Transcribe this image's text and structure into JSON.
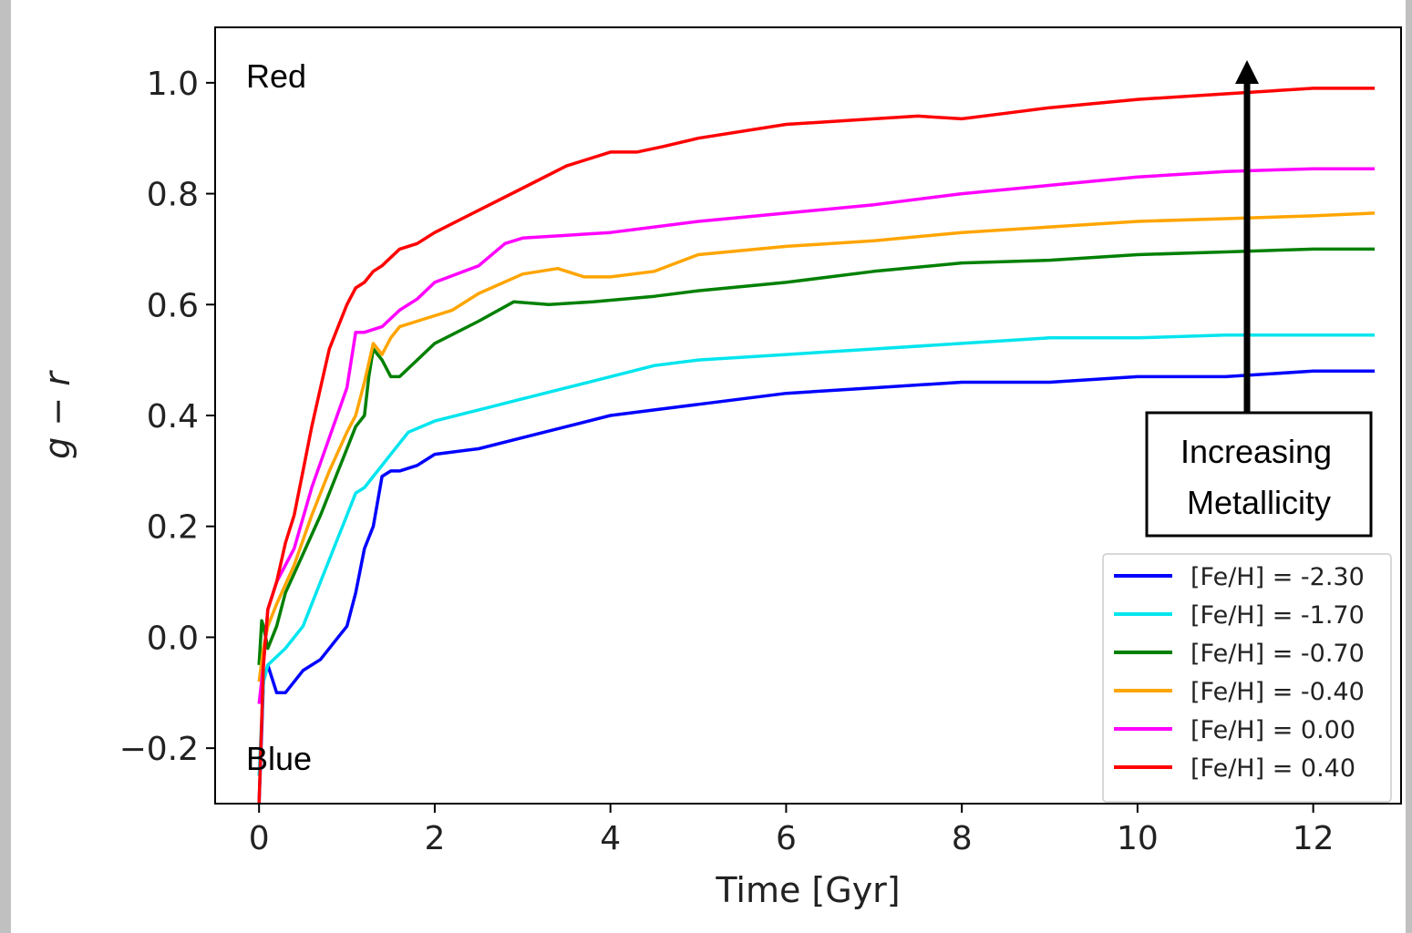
{
  "chart_data": {
    "type": "line",
    "title": "",
    "xlabel": "Time [Gyr]",
    "ylabel": "g − r",
    "xlim": [
      -0.5,
      13.0
    ],
    "ylim": [
      -0.3,
      1.1
    ],
    "x_ticks": [
      0,
      2,
      4,
      6,
      8,
      10,
      12
    ],
    "y_ticks": [
      -0.2,
      0.0,
      0.2,
      0.4,
      0.6,
      0.8,
      1.0
    ],
    "x_tick_labels": [
      "0",
      "2",
      "4",
      "6",
      "8",
      "10",
      "12"
    ],
    "y_tick_labels": [
      "−0.2",
      "0.0",
      "0.2",
      "0.4",
      "0.6",
      "0.8",
      "1.0"
    ],
    "grid": false,
    "legend_position": "lower-right",
    "annotations": {
      "top": "Red",
      "bottom": "Blue",
      "arrow_line1": "Increasing",
      "arrow_line2": "Metallicity"
    },
    "series": [
      {
        "name": "[Fe/H] = -2.30",
        "color": "#0000ff",
        "x": [
          0.0,
          0.05,
          0.1,
          0.2,
          0.3,
          0.5,
          0.7,
          0.9,
          1.0,
          1.1,
          1.2,
          1.3,
          1.4,
          1.5,
          1.6,
          1.8,
          2.0,
          2.5,
          3.0,
          3.5,
          4.0,
          4.5,
          5.0,
          6.0,
          7.0,
          8.0,
          9.0,
          10.0,
          11.0,
          12.0,
          12.7
        ],
        "y": [
          -0.3,
          -0.08,
          -0.05,
          -0.1,
          -0.1,
          -0.06,
          -0.04,
          0.0,
          0.02,
          0.08,
          0.16,
          0.2,
          0.29,
          0.3,
          0.3,
          0.31,
          0.33,
          0.34,
          0.36,
          0.38,
          0.4,
          0.41,
          0.42,
          0.44,
          0.45,
          0.46,
          0.46,
          0.47,
          0.47,
          0.48,
          0.48
        ]
      },
      {
        "name": "[Fe/H] = -1.70",
        "color": "#00e5ee",
        "x": [
          0.0,
          0.05,
          0.1,
          0.3,
          0.5,
          0.7,
          0.9,
          1.0,
          1.1,
          1.2,
          1.3,
          1.5,
          1.7,
          2.0,
          2.5,
          3.0,
          3.5,
          4.0,
          4.5,
          5.0,
          6.0,
          7.0,
          8.0,
          9.0,
          10.0,
          11.0,
          12.0,
          12.7
        ],
        "y": [
          -0.25,
          -0.08,
          -0.05,
          -0.02,
          0.02,
          0.1,
          0.18,
          0.22,
          0.26,
          0.27,
          0.29,
          0.33,
          0.37,
          0.39,
          0.41,
          0.43,
          0.45,
          0.47,
          0.49,
          0.5,
          0.51,
          0.52,
          0.53,
          0.54,
          0.54,
          0.545,
          0.545,
          0.545
        ]
      },
      {
        "name": "[Fe/H] = -0.70",
        "color": "#008000",
        "x": [
          0.0,
          0.03,
          0.05,
          0.1,
          0.2,
          0.3,
          0.5,
          0.7,
          0.9,
          1.0,
          1.1,
          1.2,
          1.25,
          1.3,
          1.4,
          1.5,
          1.6,
          1.8,
          2.0,
          2.5,
          2.9,
          3.3,
          3.8,
          4.5,
          5.0,
          6.0,
          7.0,
          8.0,
          9.0,
          10.0,
          11.0,
          12.0,
          12.7
        ],
        "y": [
          -0.05,
          0.03,
          0.02,
          -0.02,
          0.02,
          0.08,
          0.15,
          0.22,
          0.3,
          0.34,
          0.38,
          0.4,
          0.47,
          0.52,
          0.5,
          0.47,
          0.47,
          0.5,
          0.53,
          0.57,
          0.605,
          0.6,
          0.605,
          0.615,
          0.625,
          0.64,
          0.66,
          0.675,
          0.68,
          0.69,
          0.695,
          0.7,
          0.7
        ]
      },
      {
        "name": "[Fe/H] = -0.40",
        "color": "#ffa500",
        "x": [
          0.0,
          0.05,
          0.1,
          0.2,
          0.4,
          0.6,
          0.8,
          1.0,
          1.1,
          1.2,
          1.3,
          1.4,
          1.5,
          1.6,
          1.8,
          2.0,
          2.2,
          2.5,
          3.0,
          3.4,
          3.7,
          4.0,
          4.5,
          5.0,
          6.0,
          7.0,
          8.0,
          9.0,
          10.0,
          11.0,
          12.0,
          12.7
        ],
        "y": [
          -0.08,
          -0.02,
          0.02,
          0.06,
          0.13,
          0.22,
          0.3,
          0.37,
          0.4,
          0.46,
          0.53,
          0.51,
          0.54,
          0.56,
          0.57,
          0.58,
          0.59,
          0.62,
          0.655,
          0.665,
          0.65,
          0.65,
          0.66,
          0.69,
          0.705,
          0.715,
          0.73,
          0.74,
          0.75,
          0.755,
          0.76,
          0.765
        ]
      },
      {
        "name": "[Fe/H] = 0.00",
        "color": "#ff00ff",
        "x": [
          0.0,
          0.05,
          0.1,
          0.2,
          0.4,
          0.6,
          0.8,
          1.0,
          1.1,
          1.2,
          1.4,
          1.6,
          1.8,
          2.0,
          2.5,
          2.8,
          3.0,
          4.0,
          5.0,
          6.0,
          7.0,
          8.0,
          9.0,
          10.0,
          11.0,
          12.0,
          12.7
        ],
        "y": [
          -0.12,
          -0.05,
          0.05,
          0.1,
          0.16,
          0.27,
          0.36,
          0.45,
          0.55,
          0.55,
          0.56,
          0.59,
          0.61,
          0.64,
          0.67,
          0.71,
          0.72,
          0.73,
          0.75,
          0.765,
          0.78,
          0.8,
          0.815,
          0.83,
          0.84,
          0.845,
          0.845
        ]
      },
      {
        "name": "[Fe/H] = 0.40",
        "color": "#ff0000",
        "x": [
          0.0,
          0.05,
          0.1,
          0.2,
          0.3,
          0.4,
          0.5,
          0.6,
          0.7,
          0.8,
          0.9,
          1.0,
          1.1,
          1.2,
          1.3,
          1.4,
          1.6,
          1.8,
          2.0,
          2.5,
          3.0,
          3.5,
          3.8,
          4.0,
          4.3,
          4.6,
          5.0,
          6.0,
          7.0,
          7.5,
          8.0,
          8.5,
          9.0,
          10.0,
          11.0,
          12.0,
          12.7
        ],
        "y": [
          -0.3,
          -0.05,
          0.05,
          0.1,
          0.17,
          0.22,
          0.3,
          0.38,
          0.45,
          0.52,
          0.56,
          0.6,
          0.63,
          0.64,
          0.66,
          0.67,
          0.7,
          0.71,
          0.73,
          0.77,
          0.81,
          0.85,
          0.865,
          0.875,
          0.875,
          0.885,
          0.9,
          0.925,
          0.935,
          0.94,
          0.935,
          0.945,
          0.955,
          0.97,
          0.98,
          0.99,
          0.99
        ]
      }
    ]
  }
}
